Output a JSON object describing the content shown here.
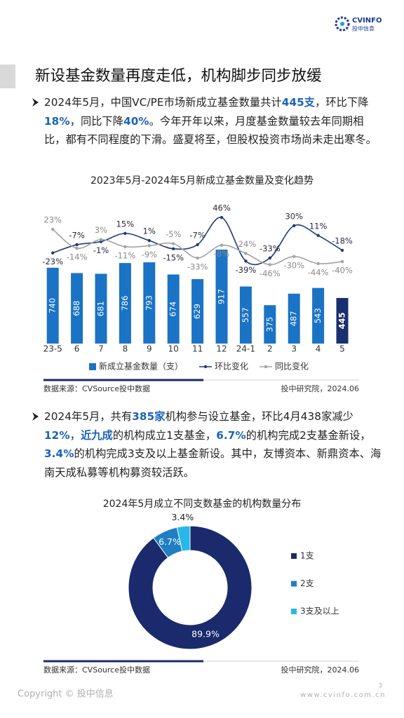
{
  "header": {
    "logo_text": "CVINFO",
    "logo_subtext": "投中信息"
  },
  "title": "新设基金数量再度走低，机构脚步同步放缓",
  "paragraphs": [
    {
      "runs": [
        {
          "text": "2024年5月，中国VC/PE市场新成立基金数量共计"
        },
        {
          "text": "445支",
          "bold": true
        },
        {
          "text": "，环比下降"
        },
        {
          "text": "18%",
          "bold": true
        },
        {
          "text": "，同比下降"
        },
        {
          "text": "40%",
          "bold": true
        },
        {
          "text": "。今年开年以来，月度基金数量较去年同期相比，都有不同程度的下滑。盛夏将至，但股权投资市场尚未走出寒冬。"
        }
      ]
    },
    {
      "runs": [
        {
          "text": "2024年5月，共有"
        },
        {
          "text": "385家",
          "bold": true
        },
        {
          "text": "机构参与设立基金，环比4月438家减少"
        },
        {
          "text": "12%",
          "bold": true
        },
        {
          "text": "，"
        },
        {
          "text": "近九成",
          "bold": true
        },
        {
          "text": "的机构成立1支基金，"
        },
        {
          "text": "6.7%",
          "bold": true
        },
        {
          "text": "的机构完成2支基金新设，"
        },
        {
          "text": "3.4%",
          "bold": true
        },
        {
          "text": "的机构完成3支及以上基金新设。其中，友博资本、新鼎资本、海南天成私募等机构募资较活跃。"
        }
      ]
    }
  ],
  "chart_data": [
    {
      "type": "bar-line",
      "title": "2023年5月-2024年5月新成立基金数量及变化趋势",
      "categories": [
        "23-5",
        "6",
        "7",
        "8",
        "9",
        "10",
        "11",
        "12",
        "24-1",
        "2",
        "3",
        "4",
        "5"
      ],
      "series": [
        {
          "name": "新成立基金数量（支）",
          "type": "bar",
          "color": "#1a73c5",
          "colors": [
            "#1a73c5",
            "#1a73c5",
            "#1a73c5",
            "#1a73c5",
            "#1a73c5",
            "#1a73c5",
            "#1a73c5",
            "#1a73c5",
            "#1a73c5",
            "#1a73c5",
            "#1a73c5",
            "#1a73c5",
            "#1a2f6e"
          ],
          "values": [
            740,
            688,
            681,
            786,
            793,
            674,
            629,
            917,
            557,
            375,
            487,
            543,
            445
          ]
        },
        {
          "name": "环比变化",
          "type": "line",
          "axis": "y2",
          "color": "#1f3a7a",
          "values": [
            -23,
            -7,
            -1,
            15,
            1,
            -15,
            -7,
            46,
            -39,
            -33,
            30,
            11,
            -18
          ],
          "value_labels": [
            "-23%",
            "-7%",
            "-1%",
            "15%",
            "1%",
            "-15%",
            "-7%",
            "46%",
            "-39%",
            "-33%",
            "30%",
            "11%",
            "-18%"
          ]
        },
        {
          "name": "同比变化",
          "type": "line",
          "axis": "y2",
          "color": "#a3a3a3",
          "values": [
            23,
            -14,
            3,
            -11,
            -9,
            -5,
            -33,
            -8,
            -24,
            -46,
            -30,
            -44,
            -40
          ],
          "value_labels": [
            "23%",
            "-14%",
            "3%",
            "-11%",
            "-9%",
            "-5%",
            "-33%",
            "-8%",
            "-24%",
            "-46%",
            "-30%",
            "-44%",
            "-40%"
          ]
        }
      ],
      "ylim": [
        0,
        1300
      ],
      "y2lim": [
        -200,
        60
      ]
    },
    {
      "type": "pie",
      "title": "2024年5月成立不同支数基金的机构数量分布",
      "categories": [
        "1支",
        "2支",
        "3支及以上"
      ],
      "values": [
        89.9,
        6.7,
        3.4
      ],
      "value_labels": [
        "89.9%",
        "6.7%",
        "3.4%"
      ],
      "colors": [
        "#1a2a6c",
        "#1f7ec4",
        "#27b8e8"
      ],
      "donut": true
    }
  ],
  "sources": [
    {
      "left": "数据来源：CVSource投中数据",
      "right": "投中研究院，2024.06"
    },
    {
      "left": "数据来源：CVSource投中数据",
      "right": "投中研究院，2024.06"
    }
  ],
  "footer": {
    "copyright": "Copyright © 投中信息",
    "url": "www.cvinfo.com.cn",
    "page": "3"
  }
}
